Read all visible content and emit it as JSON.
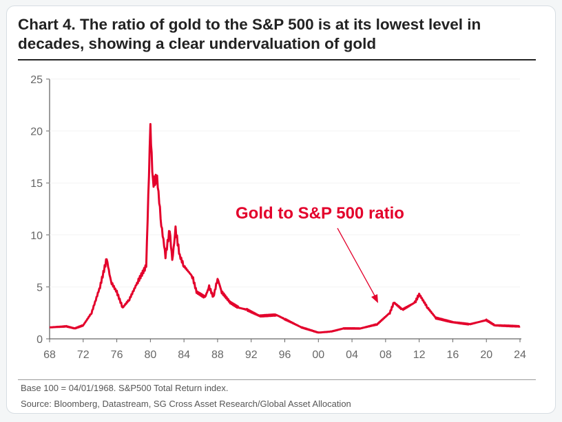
{
  "title": "Chart 4. The ratio of gold to the S&P 500 is at its lowest level in decades, showing a clear undervaluation of gold",
  "footnotes": [
    "Base 100 = 04/01/1968. S&P500 Total Return index.",
    "Source: Bloomberg, Datastream, SG Cross Asset Research/Global Asset Allocation"
  ],
  "colors": {
    "series": "#e3002b",
    "axis": "#666666"
  },
  "chart_data": {
    "type": "line",
    "title": "Chart 4. The ratio of gold to the S&P 500 is at its lowest level in decades, showing a clear undervaluation of gold",
    "xlabel": "",
    "ylabel": "",
    "xlim": [
      1968,
      2024.2
    ],
    "ylim": [
      0,
      25
    ],
    "xticks": [
      "68",
      "72",
      "76",
      "80",
      "84",
      "88",
      "92",
      "96",
      "00",
      "04",
      "08",
      "12",
      "16",
      "20",
      "24"
    ],
    "yticks": [
      "0",
      "5",
      "10",
      "15",
      "20",
      "25"
    ],
    "grid": false,
    "annotation": "Gold to S&P 500 ratio",
    "series": [
      {
        "x": [
          1968,
          1970,
          1971,
          1972,
          1973,
          1974,
          1974.8,
          1975.3,
          1976,
          1976.7,
          1977.5,
          1978.5,
          1979.5,
          1980.0,
          1980.3,
          1980.8,
          1981.3,
          1981.8,
          1982.3,
          1982.6,
          1983,
          1983.5,
          1984,
          1985,
          1985.5,
          1986.5,
          1987,
          1987.5,
          1988,
          1988.5,
          1989.5,
          1990.5,
          1991.5,
          1993,
          1995,
          1996,
          1998,
          2000,
          2001.5,
          2003,
          2005,
          2007,
          2008.5,
          2009,
          2010,
          2011.5,
          2012,
          2013,
          2014,
          2016,
          2018,
          2020,
          2021,
          2024
        ],
        "y": [
          1.1,
          1.2,
          1.0,
          1.3,
          2.5,
          5,
          7.7,
          5.5,
          4.5,
          3,
          3.8,
          5.5,
          7,
          20.3,
          15,
          15.5,
          11,
          8,
          10.5,
          7.5,
          10.5,
          8,
          7,
          6,
          4.5,
          4,
          5,
          4,
          5.8,
          4.5,
          3.5,
          3,
          2.8,
          2.2,
          2.3,
          1.9,
          1.1,
          0.6,
          0.7,
          1.0,
          1.0,
          1.4,
          2.5,
          3.5,
          2.8,
          3.5,
          4.3,
          3,
          2,
          1.6,
          1.4,
          1.8,
          1.3,
          1.2
        ]
      }
    ]
  }
}
